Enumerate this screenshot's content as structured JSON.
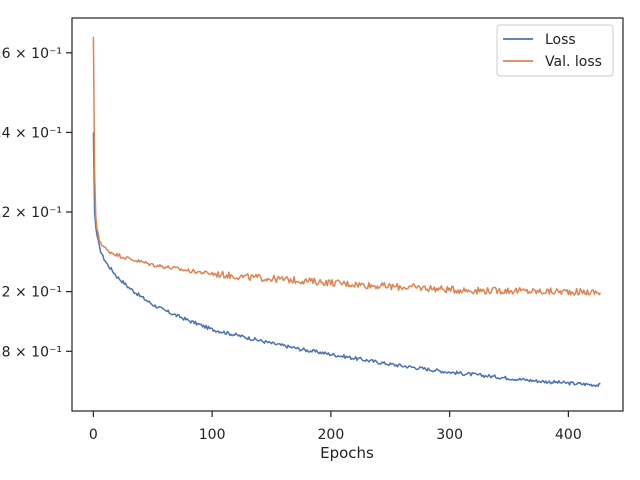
{
  "chart_data": {
    "type": "line",
    "title": "",
    "xlabel": "Epochs",
    "ylabel": "",
    "yscale": "log",
    "xlim": [
      -18,
      446
    ],
    "ylim": [
      0.4,
      0.795
    ],
    "x_ticks": [
      0,
      100,
      200,
      300,
      400
    ],
    "x_tick_labels": [
      "0",
      "100",
      "200",
      "300",
      "400"
    ],
    "y_ticks": [
      0.46,
      0.52,
      0.6,
      0.68,
      0.76
    ],
    "y_tick_labels": [
      ".8 × 10⁻¹",
      "2 × 10⁻¹",
      ".2 × 10⁻¹",
      ".4 × 10⁻¹",
      ".6 × 10⁻¹"
    ],
    "grid": false,
    "legend_position": "top-right",
    "series": [
      {
        "name": "Loss",
        "color": "#4c72b0",
        "x": [
          0,
          1,
          2,
          3,
          5,
          8,
          12,
          20,
          30,
          40,
          50,
          60,
          80,
          100,
          125,
          150,
          175,
          200,
          225,
          250,
          275,
          300,
          325,
          350,
          375,
          400,
          427
        ],
        "y": [
          0.68,
          0.6,
          0.585,
          0.577,
          0.565,
          0.555,
          0.547,
          0.535,
          0.524,
          0.515,
          0.507,
          0.501,
          0.491,
          0.482,
          0.475,
          0.468,
          0.462,
          0.457,
          0.452,
          0.447,
          0.443,
          0.439,
          0.436,
          0.433,
          0.43,
          0.428,
          0.426
        ]
      },
      {
        "name": "Val. loss",
        "color": "#dd8452",
        "x": [
          0,
          1,
          2,
          3,
          5,
          8,
          12,
          20,
          30,
          40,
          50,
          60,
          80,
          100,
          125,
          150,
          175,
          200,
          225,
          250,
          275,
          300,
          325,
          350,
          375,
          400,
          427
        ],
        "y": [
          0.776,
          0.64,
          0.595,
          0.583,
          0.572,
          0.566,
          0.561,
          0.557,
          0.553,
          0.55,
          0.547,
          0.545,
          0.541,
          0.538,
          0.535,
          0.533,
          0.531,
          0.529,
          0.527,
          0.525,
          0.524,
          0.522,
          0.521,
          0.521,
          0.52,
          0.52,
          0.519
        ]
      }
    ]
  }
}
